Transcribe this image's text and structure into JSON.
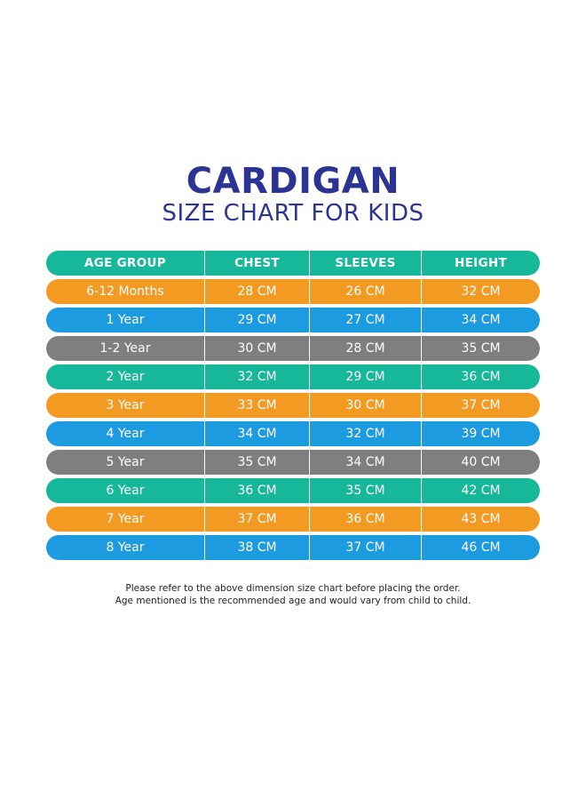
{
  "title": "CARDIGAN",
  "subtitle": "SIZE CHART FOR KIDS",
  "colors": {
    "title": "#2b3394",
    "teal": "#17b89a",
    "orange": "#f39a23",
    "blue": "#1c9be0",
    "gray": "#7f7f7f"
  },
  "table": {
    "headers": [
      "AGE GROUP",
      "CHEST",
      "SLEEVES",
      "HEIGHT"
    ],
    "header_color": "teal",
    "rows": [
      {
        "age": "6-12 Months",
        "chest": "28 CM",
        "sleeves": "26 CM",
        "height": "32 CM",
        "color": "orange"
      },
      {
        "age": "1 Year",
        "chest": "29 CM",
        "sleeves": "27 CM",
        "height": "34 CM",
        "color": "blue"
      },
      {
        "age": "1-2 Year",
        "chest": "30 CM",
        "sleeves": "28 CM",
        "height": "35 CM",
        "color": "gray"
      },
      {
        "age": "2 Year",
        "chest": "32 CM",
        "sleeves": "29 CM",
        "height": "36 CM",
        "color": "teal"
      },
      {
        "age": "3 Year",
        "chest": "33 CM",
        "sleeves": "30 CM",
        "height": "37 CM",
        "color": "orange"
      },
      {
        "age": "4 Year",
        "chest": "34 CM",
        "sleeves": "32 CM",
        "height": "39 CM",
        "color": "blue"
      },
      {
        "age": "5 Year",
        "chest": "35 CM",
        "sleeves": "34 CM",
        "height": "40 CM",
        "color": "gray"
      },
      {
        "age": "6 Year",
        "chest": "36 CM",
        "sleeves": "35 CM",
        "height": "42 CM",
        "color": "teal"
      },
      {
        "age": "7 Year",
        "chest": "37 CM",
        "sleeves": "36 CM",
        "height": "43 CM",
        "color": "orange"
      },
      {
        "age": "8 Year",
        "chest": "38 CM",
        "sleeves": "37 CM",
        "height": "46 CM",
        "color": "blue"
      }
    ]
  },
  "notes": [
    "Please refer to the above dimension size chart before placing the order.",
    "Age mentioned is the recommended age and would vary from child to child."
  ]
}
